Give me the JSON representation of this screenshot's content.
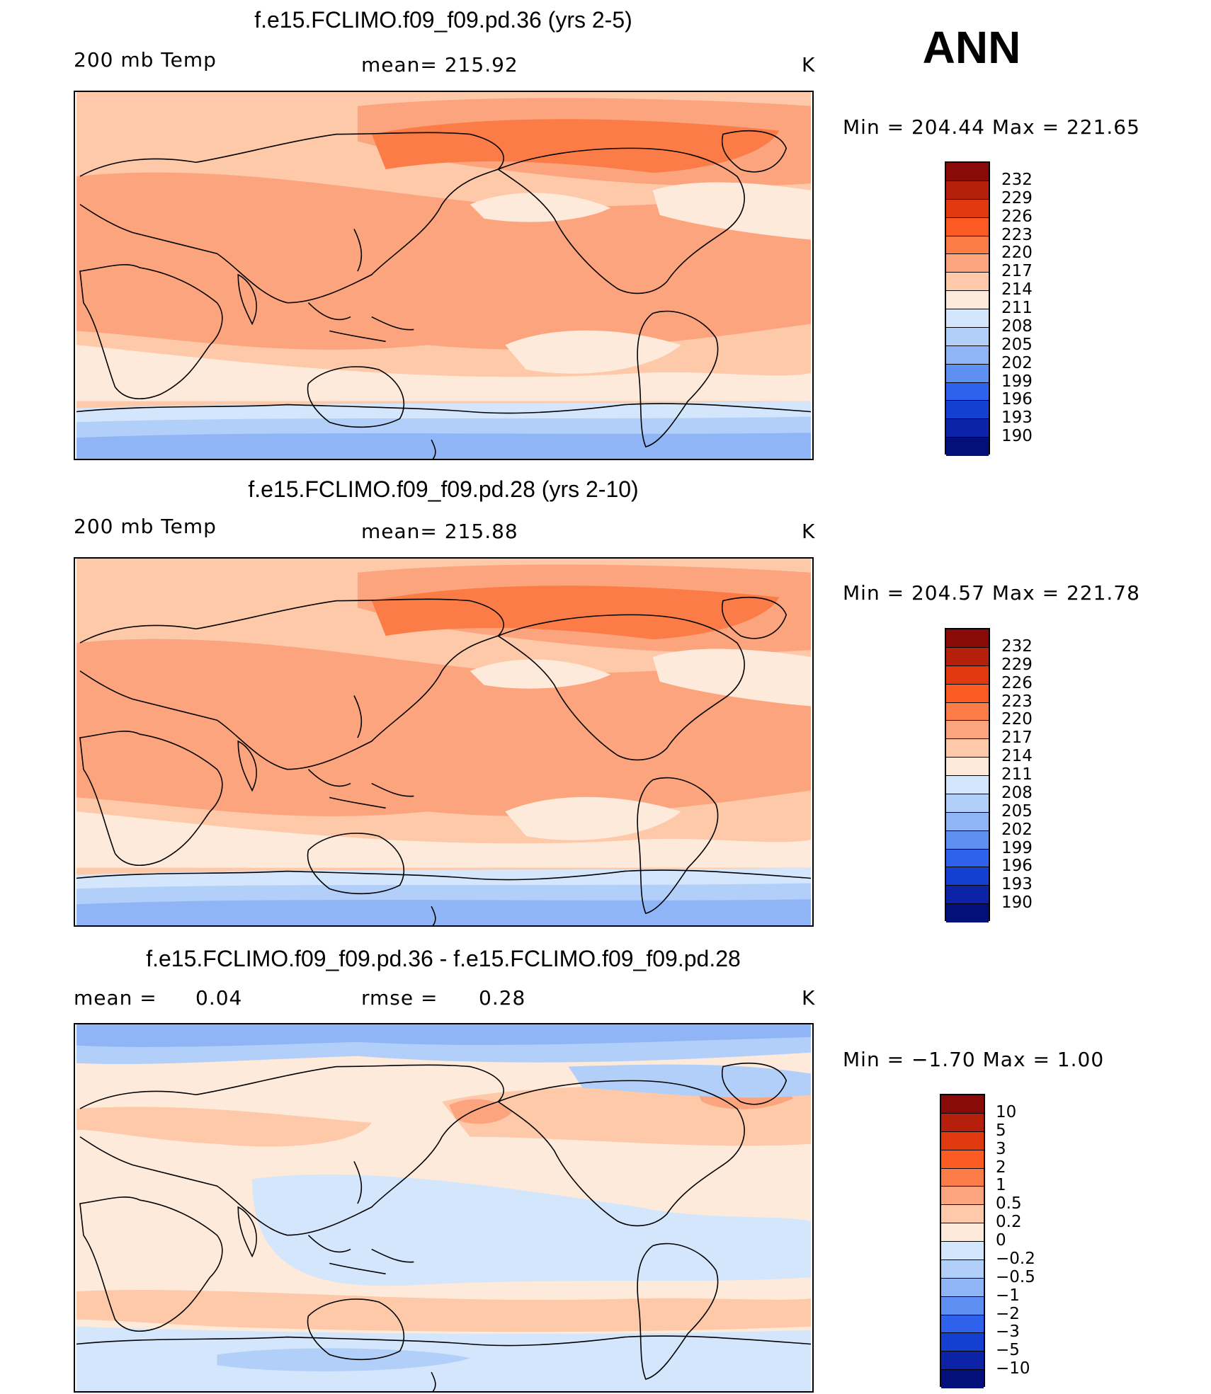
{
  "season": "ANN",
  "panels": [
    {
      "title": "f.e15.FCLIMO.f09_f09.pd.36 (yrs 2-5)",
      "left_label": "200 mb Temp",
      "center_label": "mean= 215.92",
      "units": "K",
      "min_max": "Min = 204.44 Max = 221.65",
      "colorbar_labels": [
        "232",
        "229",
        "226",
        "223",
        "220",
        "217",
        "214",
        "211",
        "208",
        "205",
        "202",
        "199",
        "196",
        "193",
        "190"
      ]
    },
    {
      "title": "f.e15.FCLIMO.f09_f09.pd.28 (yrs 2-10)",
      "left_label": "200 mb Temp",
      "center_label": "mean= 215.88",
      "units": "K",
      "min_max": "Min = 204.57 Max = 221.78",
      "colorbar_labels": [
        "232",
        "229",
        "226",
        "223",
        "220",
        "217",
        "214",
        "211",
        "208",
        "205",
        "202",
        "199",
        "196",
        "193",
        "190"
      ]
    },
    {
      "title": "f.e15.FCLIMO.f09_f09.pd.36 - f.e15.FCLIMO.f09_f09.pd.28",
      "left_label_key": "mean =",
      "left_label_val": "0.04",
      "center_label_key": "rmse =",
      "center_label_val": "0.28",
      "units": "K",
      "min_max": "Min = −1.70 Max = 1.00",
      "colorbar_labels": [
        "10",
        "5",
        "3",
        "2",
        "1",
        "0.5",
        "0.2",
        "0",
        "−0.2",
        "−0.5",
        "−1",
        "−2",
        "−3",
        "−5",
        "−10"
      ]
    }
  ],
  "colors": {
    "scale": [
      "#8a0a0a",
      "#b5200d",
      "#e0380f",
      "#fb5a22",
      "#fb7c47",
      "#fca47e",
      "#fdc9a8",
      "#feeadb",
      "#d4e6fb",
      "#b2cffa",
      "#8fb5f7",
      "#5e90f2",
      "#2f62ec",
      "#1440d2",
      "#0c23a8",
      "#04107a"
    ]
  }
}
